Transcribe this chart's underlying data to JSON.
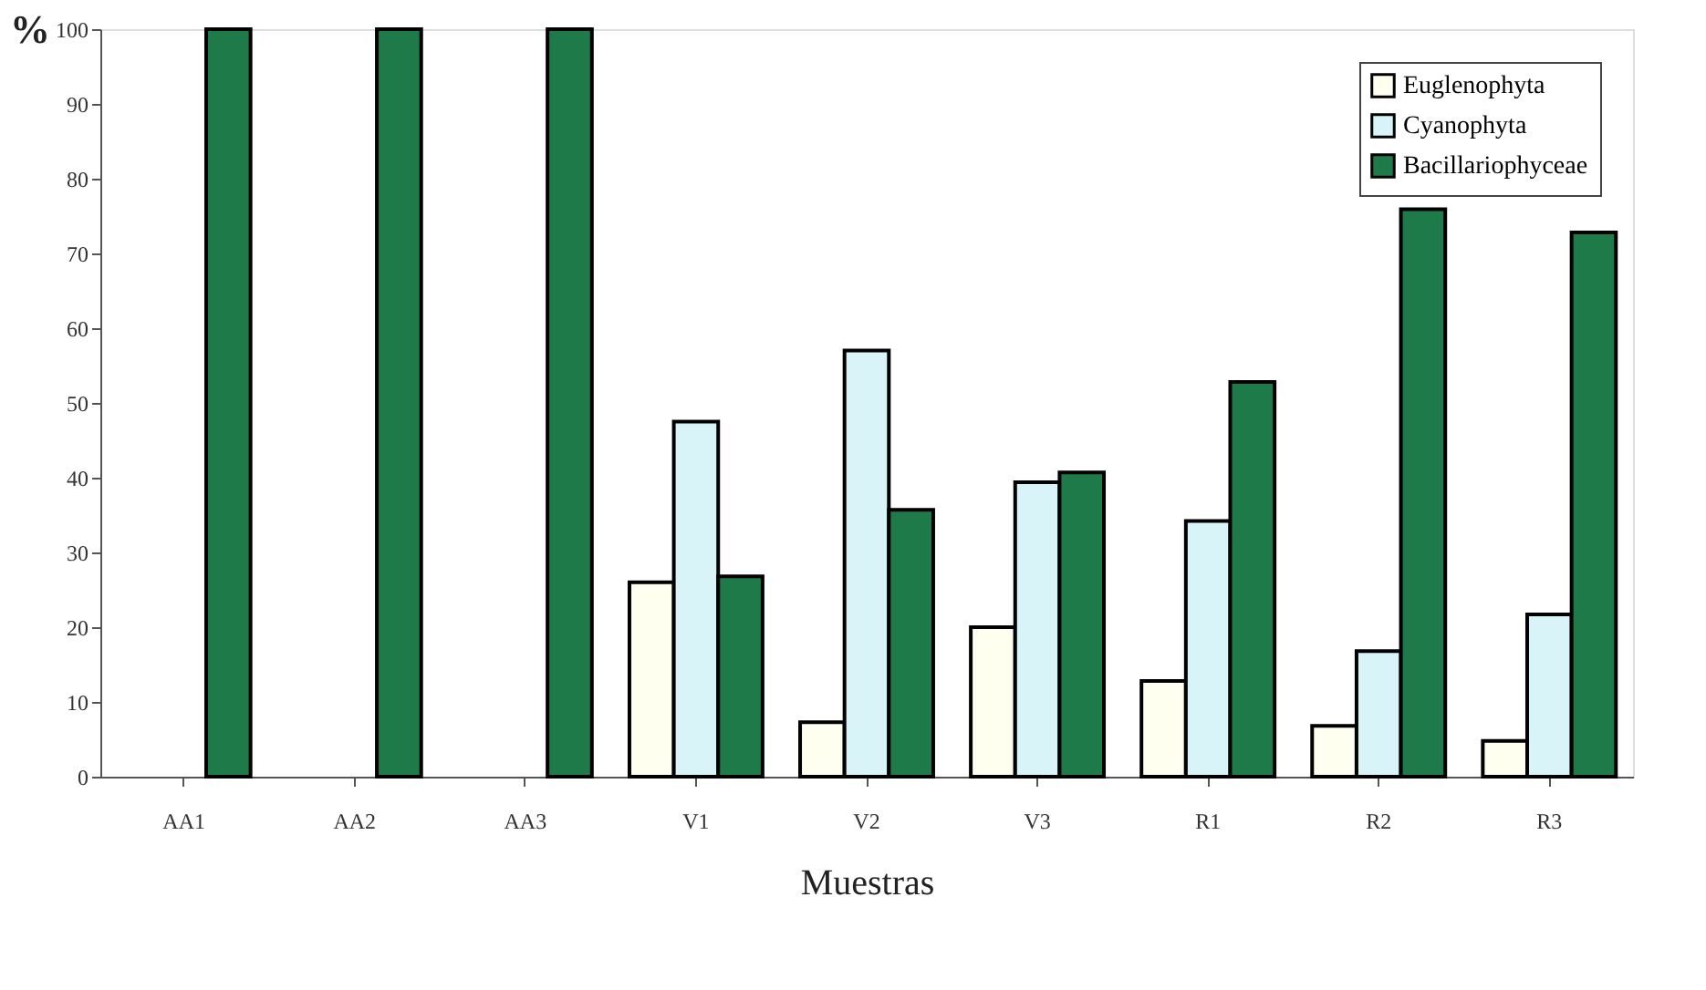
{
  "chart_data": {
    "type": "bar",
    "xlabel": "Muestras",
    "ylabel": "%",
    "categories": [
      "AA1",
      "AA2",
      "AA3",
      "V1",
      "V2",
      "V3",
      "R1",
      "R2",
      "R3"
    ],
    "series": [
      {
        "name": "Euglenophyta",
        "color": "#fffff0",
        "values": [
          null,
          null,
          null,
          26,
          7.3,
          20,
          12.8,
          6.8,
          4.8
        ]
      },
      {
        "name": "Cyanophyta",
        "color": "#d8f4f8",
        "values": [
          null,
          null,
          null,
          47.5,
          57,
          39.4,
          34.2,
          16.8,
          21.7
        ]
      },
      {
        "name": "Bacillariophyceae",
        "color": "#1f7a4a",
        "values": [
          100,
          100,
          100,
          26.8,
          35.7,
          40.7,
          52.8,
          75.9,
          72.8
        ]
      }
    ],
    "ylim": [
      0,
      100
    ],
    "yticks": [
      0,
      10,
      20,
      30,
      40,
      50,
      60,
      70,
      80,
      90,
      100
    ],
    "grid": false,
    "legend": "top right"
  }
}
